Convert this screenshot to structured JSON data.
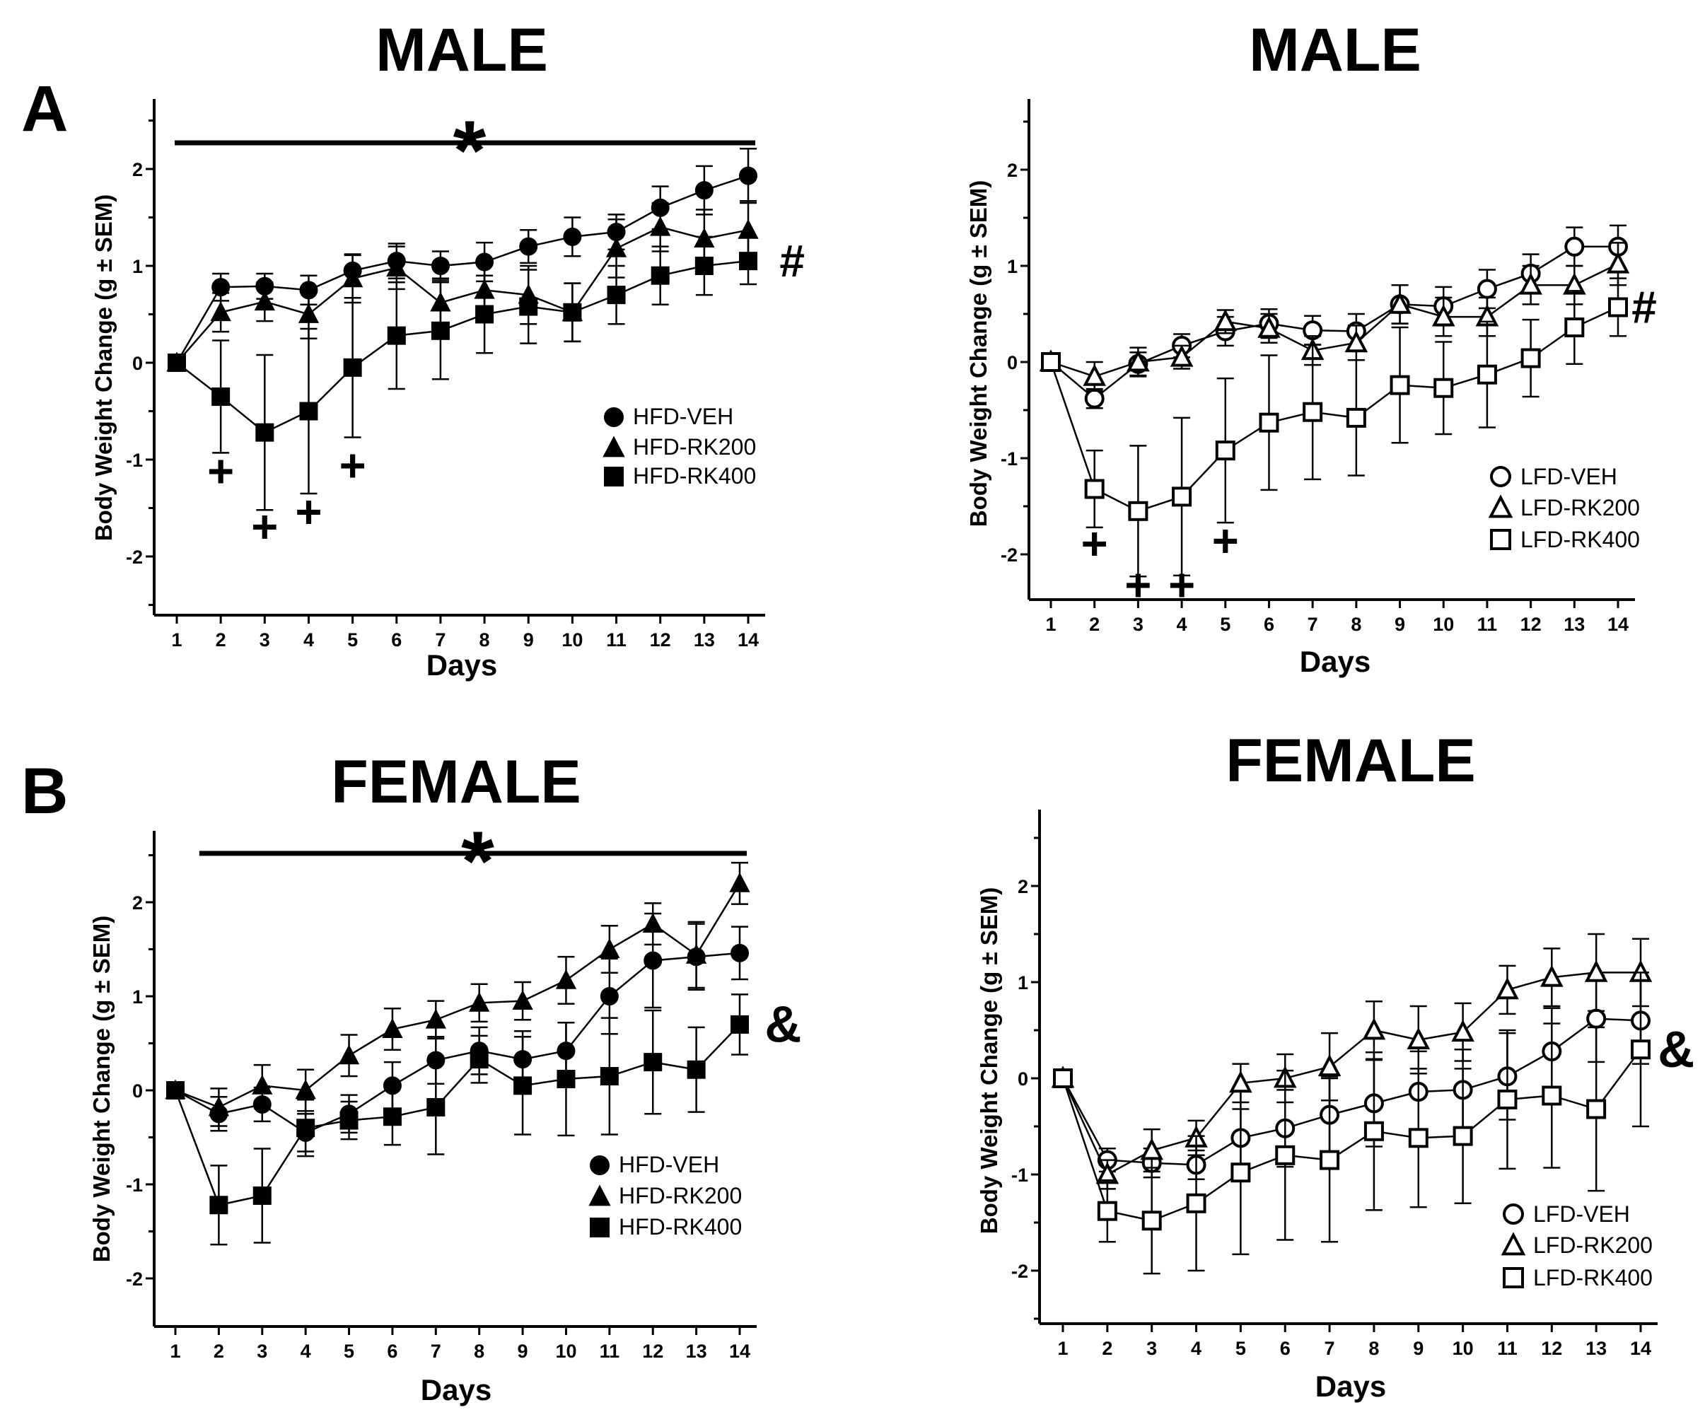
{
  "figure": {
    "panel_letters": [
      "A",
      "B"
    ]
  },
  "chart_data": [
    {
      "type": "line",
      "title": "MALE",
      "xlabel": "Days",
      "ylabel": "Body Weight Change (g ± SEM)",
      "x": [
        1,
        2,
        3,
        4,
        5,
        6,
        7,
        8,
        9,
        10,
        11,
        12,
        13,
        14
      ],
      "xlim": [
        1,
        14
      ],
      "ylim": [
        -2.5,
        2.7
      ],
      "yticks": [
        -2,
        -1,
        0,
        1,
        2
      ],
      "legend_position": "lower-right",
      "series": [
        {
          "name": "HFD-VEH",
          "marker": "circle",
          "filled": true,
          "values": [
            0,
            0.78,
            0.79,
            0.75,
            0.95,
            1.05,
            1.0,
            1.04,
            1.2,
            1.3,
            1.35,
            1.6,
            1.78,
            1.93
          ],
          "err": [
            0,
            0.14,
            0.13,
            0.15,
            0.16,
            0.18,
            0.15,
            0.2,
            0.17,
            0.2,
            0.18,
            0.22,
            0.25,
            0.28
          ]
        },
        {
          "name": "HFD-RK200",
          "marker": "triangle",
          "filled": true,
          "values": [
            0,
            0.52,
            0.63,
            0.5,
            0.87,
            0.98,
            0.62,
            0.75,
            0.7,
            0.52,
            1.18,
            1.4,
            1.28,
            1.37
          ],
          "err": [
            0,
            0.2,
            0.2,
            0.25,
            0.25,
            0.22,
            0.25,
            0.3,
            0.3,
            0.3,
            0.3,
            0.25,
            0.3,
            0.3
          ]
        },
        {
          "name": "HFD-RK400",
          "marker": "square",
          "filled": true,
          "values": [
            0,
            -0.35,
            -0.72,
            -0.5,
            -0.05,
            0.28,
            0.33,
            0.5,
            0.58,
            0.52,
            0.7,
            0.9,
            1.0,
            1.05
          ],
          "err": [
            0,
            0.58,
            0.8,
            0.85,
            0.72,
            0.55,
            0.5,
            0.4,
            0.38,
            0.3,
            0.3,
            0.3,
            0.3,
            0.24
          ]
        }
      ],
      "annotations": [
        {
          "text": "*",
          "kind": "significance-bar",
          "x_start": 1,
          "x_end": 14,
          "y": 2.27
        },
        {
          "text": "#",
          "x": 15.0,
          "y": 1.05
        },
        {
          "text": "+",
          "x": 2,
          "y": -1.18
        },
        {
          "text": "+",
          "x": 3,
          "y": -1.75
        },
        {
          "text": "+",
          "x": 4,
          "y": -1.6
        },
        {
          "text": "+",
          "x": 5,
          "y": -1.12
        }
      ]
    },
    {
      "type": "line",
      "title": "MALE",
      "xlabel": "Days",
      "ylabel": "Body Weight Change (g ± SEM)",
      "x": [
        1,
        2,
        3,
        4,
        5,
        6,
        7,
        8,
        9,
        10,
        11,
        12,
        13,
        14
      ],
      "xlim": [
        1,
        14
      ],
      "ylim": [
        -2.45,
        2.75
      ],
      "yticks": [
        -2,
        -1,
        0,
        1,
        2
      ],
      "legend_position": "lower-right",
      "series": [
        {
          "name": "LFD-VEH",
          "marker": "circle",
          "filled": false,
          "values": [
            0,
            -0.38,
            -0.02,
            0.17,
            0.32,
            0.4,
            0.33,
            0.32,
            0.6,
            0.58,
            0.76,
            0.92,
            1.2,
            1.2
          ],
          "err": [
            0,
            0.1,
            0.12,
            0.12,
            0.15,
            0.15,
            0.15,
            0.18,
            0.2,
            0.2,
            0.2,
            0.2,
            0.2,
            0.22
          ]
        },
        {
          "name": "LFD-RK200",
          "marker": "triangle",
          "filled": false,
          "values": [
            0,
            -0.15,
            0.0,
            0.05,
            0.42,
            0.35,
            0.12,
            0.2,
            0.6,
            0.47,
            0.47,
            0.8,
            0.8,
            1.02
          ],
          "err": [
            0,
            0.15,
            0.15,
            0.12,
            0.12,
            0.15,
            0.15,
            0.18,
            0.2,
            0.2,
            0.2,
            0.2,
            0.2,
            0.22
          ]
        },
        {
          "name": "LFD-RK400",
          "marker": "square",
          "filled": false,
          "values": [
            0,
            -1.32,
            -1.55,
            -1.4,
            -0.92,
            -0.63,
            -0.52,
            -0.58,
            -0.24,
            -0.27,
            -0.13,
            0.04,
            0.36,
            0.57
          ],
          "err": [
            0,
            0.4,
            0.68,
            0.82,
            0.75,
            0.7,
            0.7,
            0.6,
            0.6,
            0.48,
            0.55,
            0.4,
            0.38,
            0.3
          ]
        }
      ],
      "annotations": [
        {
          "text": "#",
          "x": 14.6,
          "y": 0.57
        },
        {
          "text": "+",
          "x": 2,
          "y": -1.95
        },
        {
          "text": "+",
          "x": 3,
          "y": -2.38
        },
        {
          "text": "+",
          "x": 4,
          "y": -2.38
        },
        {
          "text": "+",
          "x": 5,
          "y": -1.92
        }
      ]
    },
    {
      "type": "line",
      "title": "FEMALE",
      "xlabel": "Days",
      "ylabel": "Body Weight Change (g ± SEM)",
      "x": [
        1,
        2,
        3,
        4,
        5,
        6,
        7,
        8,
        9,
        10,
        11,
        12,
        13,
        14
      ],
      "xlim": [
        1,
        14
      ],
      "ylim": [
        -2.4,
        2.75
      ],
      "yticks": [
        -2,
        -1,
        0,
        1,
        2
      ],
      "legend_position": "lower-right",
      "series": [
        {
          "name": "HFD-VEH",
          "marker": "circle",
          "filled": true,
          "values": [
            0,
            -0.25,
            -0.15,
            -0.45,
            -0.25,
            0.05,
            0.32,
            0.42,
            0.33,
            0.42,
            1.0,
            1.38,
            1.42,
            1.46
          ],
          "err": [
            0,
            0.18,
            0.18,
            0.2,
            0.2,
            0.25,
            0.25,
            0.25,
            0.3,
            0.3,
            0.4,
            0.5,
            0.35,
            0.28
          ]
        },
        {
          "name": "HFD-RK200",
          "marker": "triangle",
          "filled": true,
          "values": [
            0,
            -0.18,
            0.05,
            0.0,
            0.37,
            0.65,
            0.75,
            0.93,
            0.95,
            1.17,
            1.5,
            1.77,
            1.44,
            2.2
          ],
          "err": [
            0,
            0.2,
            0.22,
            0.22,
            0.22,
            0.22,
            0.2,
            0.2,
            0.2,
            0.25,
            0.25,
            0.22,
            0.35,
            0.22
          ]
        },
        {
          "name": "HFD-RK400",
          "marker": "square",
          "filled": true,
          "values": [
            0,
            -1.22,
            -1.12,
            -0.4,
            -0.32,
            -0.28,
            -0.18,
            0.33,
            0.05,
            0.12,
            0.15,
            0.3,
            0.22,
            0.7
          ],
          "err": [
            0,
            0.42,
            0.5,
            0.3,
            0.2,
            0.3,
            0.5,
            0.25,
            0.52,
            0.6,
            0.62,
            0.55,
            0.45,
            0.32
          ]
        }
      ],
      "annotations": [
        {
          "text": "*",
          "kind": "significance-bar",
          "x_start": 1.6,
          "x_end": 14,
          "y": 2.52
        },
        {
          "text": "&",
          "x": 15.0,
          "y": 0.68
        }
      ]
    },
    {
      "type": "line",
      "title": "FEMALE",
      "xlabel": "Days",
      "ylabel": "Body Weight Change (g ± SEM)",
      "x": [
        1,
        2,
        3,
        4,
        5,
        6,
        7,
        8,
        9,
        10,
        11,
        12,
        13,
        14
      ],
      "xlim": [
        1,
        14
      ],
      "ylim": [
        -2.5,
        2.75
      ],
      "yticks": [
        -2,
        -1,
        0,
        1,
        2
      ],
      "legend_position": "lower-right",
      "series": [
        {
          "name": "LFD-VEH",
          "marker": "circle",
          "filled": false,
          "values": [
            0,
            -0.85,
            -0.88,
            -0.9,
            -0.62,
            -0.52,
            -0.38,
            -0.26,
            -0.14,
            -0.12,
            0.02,
            0.28,
            0.62,
            0.6
          ],
          "err": [
            0,
            0.12,
            0.15,
            0.15,
            0.3,
            0.4,
            0.4,
            0.45,
            0.42,
            0.42,
            0.45,
            0.45,
            0.45,
            0.45
          ]
        },
        {
          "name": "LFD-RK200",
          "marker": "triangle",
          "filled": false,
          "values": [
            0,
            -1.0,
            -0.75,
            -0.62,
            -0.05,
            0.0,
            0.12,
            0.5,
            0.4,
            0.48,
            0.92,
            1.05,
            1.1,
            1.1
          ],
          "err": [
            0,
            0.15,
            0.22,
            0.18,
            0.2,
            0.25,
            0.35,
            0.3,
            0.35,
            0.3,
            0.25,
            0.3,
            0.4,
            0.35
          ]
        },
        {
          "name": "LFD-RK400",
          "marker": "square",
          "filled": false,
          "values": [
            0,
            -1.38,
            -1.48,
            -1.3,
            -0.98,
            -0.8,
            -0.85,
            -0.55,
            -0.62,
            -0.6,
            -0.22,
            -0.18,
            -0.32,
            0.3
          ],
          "err": [
            0,
            0.32,
            0.55,
            0.7,
            0.85,
            0.88,
            0.85,
            0.82,
            0.72,
            0.7,
            0.72,
            0.75,
            0.85,
            0.8
          ]
        }
      ],
      "annotations": [
        {
          "text": "&",
          "x": 14.8,
          "y": 0.28
        }
      ]
    }
  ]
}
